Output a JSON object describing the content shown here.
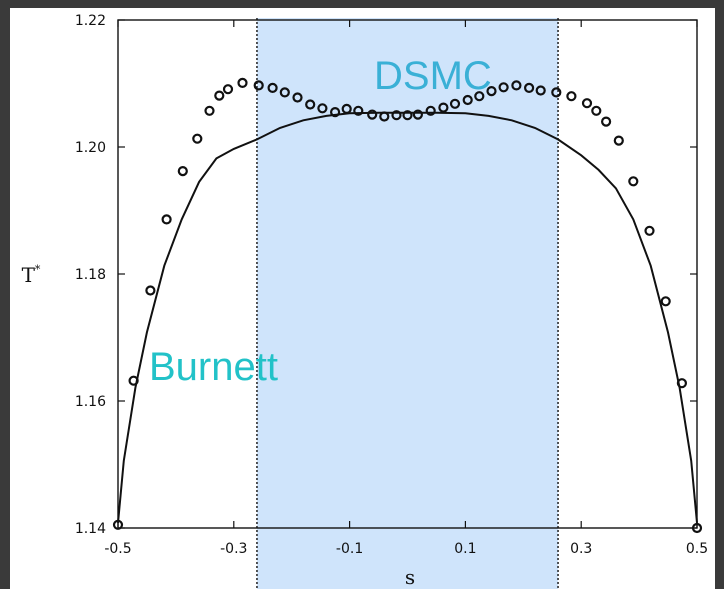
{
  "chart_data": {
    "type": "scatter",
    "xlabel": "s",
    "ylabel": "T*",
    "xlim": [
      -0.5,
      0.5
    ],
    "ylim": [
      1.14,
      1.22
    ],
    "x_ticks": [
      "-0.5",
      "-0.3",
      "-0.1",
      "0.1",
      "0.3",
      "0.5"
    ],
    "y_ticks": [
      "1.22",
      "1.20",
      "1.18",
      "1.16",
      "1.14"
    ],
    "grid": false,
    "highlight_region": {
      "x": [
        -0.26,
        0.26
      ],
      "color": "#cfe4fb"
    },
    "series": [
      {
        "name": "DSMC",
        "kind": "markers",
        "x": [
          -0.5,
          -0.473,
          -0.444,
          -0.416,
          -0.388,
          -0.363,
          -0.342,
          -0.325,
          -0.31,
          -0.285,
          -0.257,
          -0.233,
          -0.212,
          -0.19,
          -0.168,
          -0.147,
          -0.125,
          -0.105,
          -0.085,
          -0.061,
          -0.04,
          -0.019,
          0.0,
          0.018,
          0.04,
          0.062,
          0.082,
          0.104,
          0.124,
          0.145,
          0.166,
          0.188,
          0.21,
          0.23,
          0.257,
          0.283,
          0.31,
          0.326,
          0.343,
          0.365,
          0.39,
          0.418,
          0.446,
          0.474,
          0.5
        ],
        "y": [
          1.1405,
          1.1632,
          1.1774,
          1.1886,
          1.1962,
          1.2013,
          1.2057,
          1.2081,
          1.2091,
          1.2101,
          1.2097,
          1.2093,
          1.2086,
          1.2078,
          1.2067,
          1.2061,
          1.2055,
          1.206,
          1.2057,
          1.2051,
          1.2048,
          1.205,
          1.205,
          1.2051,
          1.2057,
          1.2062,
          1.2068,
          1.2074,
          1.208,
          1.2088,
          1.2094,
          1.2097,
          1.2093,
          1.2089,
          1.2086,
          1.208,
          1.2069,
          1.2057,
          1.204,
          1.201,
          1.1946,
          1.1868,
          1.1757,
          1.1628,
          1.14
        ]
      },
      {
        "name": "Burnett",
        "kind": "line",
        "x": [
          -0.5,
          -0.49,
          -0.47,
          -0.45,
          -0.42,
          -0.39,
          -0.36,
          -0.33,
          -0.3,
          -0.26,
          -0.22,
          -0.18,
          -0.14,
          -0.1,
          -0.05,
          0.0,
          0.05,
          0.1,
          0.14,
          0.18,
          0.22,
          0.26,
          0.3,
          0.33,
          0.36,
          0.39,
          0.42,
          0.45,
          0.47,
          0.49,
          0.5
        ],
        "y": [
          1.1408,
          1.1506,
          1.1621,
          1.1708,
          1.1813,
          1.1886,
          1.1945,
          1.1982,
          1.1997,
          1.2012,
          1.203,
          1.2042,
          1.2049,
          1.2053,
          1.2054,
          1.2054,
          1.2054,
          1.2053,
          1.2049,
          1.2042,
          1.203,
          1.2012,
          1.1987,
          1.1964,
          1.1935,
          1.1886,
          1.1813,
          1.1708,
          1.1621,
          1.1506,
          1.1408
        ]
      }
    ],
    "annotations": [
      {
        "text": "DSMC",
        "color": "#3ab0d6"
      },
      {
        "text": "Burnett",
        "color": "#22c2c8"
      }
    ]
  }
}
